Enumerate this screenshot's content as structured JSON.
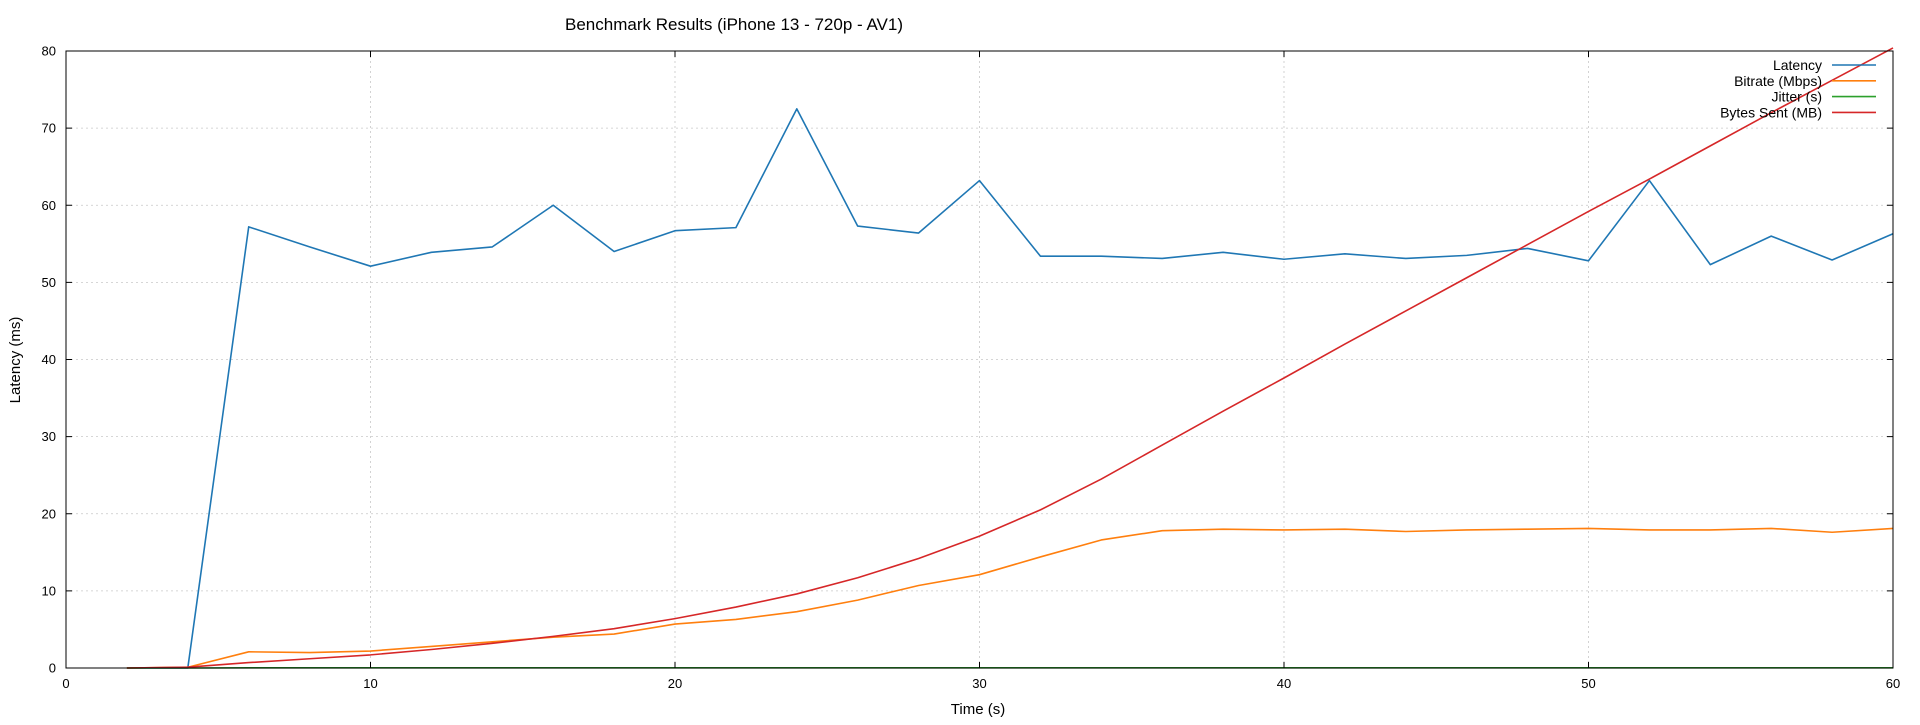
{
  "chart_data": {
    "type": "line",
    "title": "Benchmark Results (iPhone 13 - 720p - AV1)",
    "xlabel": "Time (s)",
    "ylabel": "Latency (ms)",
    "xlim": [
      0,
      60
    ],
    "ylim": [
      0,
      80
    ],
    "xticks": [
      0,
      10,
      20,
      30,
      40,
      50,
      60
    ],
    "yticks": [
      0,
      10,
      20,
      30,
      40,
      50,
      60,
      70,
      80
    ],
    "grid": true,
    "legend_position": "top-right",
    "series": [
      {
        "name": "Latency",
        "color": "#1f77b4",
        "x": [
          2,
          4,
          6,
          8,
          10,
          12,
          14,
          16,
          18,
          20,
          22,
          24,
          26,
          28,
          30,
          32,
          34,
          36,
          38,
          40,
          42,
          44,
          46,
          48,
          50,
          52,
          54,
          56,
          58,
          60
        ],
        "y": [
          0,
          0,
          57.2,
          54.6,
          52.1,
          53.9,
          54.6,
          60.0,
          54.0,
          56.7,
          57.1,
          72.5,
          57.3,
          56.4,
          63.2,
          53.4,
          53.4,
          53.1,
          53.9,
          53.0,
          53.7,
          53.1,
          53.5,
          54.4,
          52.8,
          63.2,
          52.3,
          56.0,
          52.9,
          56.3
        ]
      },
      {
        "name": "Bitrate (Mbps)",
        "color": "#ff7f0e",
        "x": [
          2,
          4,
          6,
          8,
          10,
          12,
          14,
          16,
          18,
          20,
          22,
          24,
          26,
          28,
          30,
          32,
          34,
          36,
          38,
          40,
          42,
          44,
          46,
          48,
          50,
          52,
          54,
          56,
          58,
          60
        ],
        "y": [
          0,
          0.1,
          2.1,
          2.0,
          2.2,
          2.8,
          3.4,
          4.0,
          4.4,
          5.7,
          6.3,
          7.3,
          8.8,
          10.7,
          12.1,
          14.4,
          16.6,
          17.8,
          18.0,
          17.9,
          18.0,
          17.7,
          17.9,
          18.0,
          18.1,
          17.9,
          17.9,
          18.1,
          17.6,
          18.1
        ]
      },
      {
        "name": "Jitter (s)",
        "color": "#2ca02c",
        "x": [
          2,
          4,
          6,
          8,
          10,
          12,
          14,
          16,
          18,
          20,
          22,
          24,
          26,
          28,
          30,
          32,
          34,
          36,
          38,
          40,
          42,
          44,
          46,
          48,
          50,
          52,
          54,
          56,
          58,
          60
        ],
        "y": [
          0,
          0,
          0.02,
          0.02,
          0.02,
          0.02,
          0.02,
          0.02,
          0.02,
          0.02,
          0.02,
          0.02,
          0.02,
          0.02,
          0.02,
          0.02,
          0.02,
          0.02,
          0.02,
          0.02,
          0.02,
          0.02,
          0.02,
          0.02,
          0.02,
          0.02,
          0.02,
          0.02,
          0.02,
          0.02
        ]
      },
      {
        "name": "Bytes Sent (MB)",
        "color": "#d62728",
        "x": [
          2,
          4,
          6,
          8,
          10,
          12,
          14,
          16,
          18,
          20,
          22,
          24,
          26,
          28,
          30,
          32,
          34,
          36,
          38,
          40,
          42,
          44,
          46,
          48,
          50,
          52,
          54,
          56,
          58,
          60
        ],
        "y": [
          0,
          0.1,
          0.7,
          1.2,
          1.7,
          2.4,
          3.2,
          4.1,
          5.1,
          6.4,
          7.9,
          9.6,
          11.7,
          14.2,
          17.1,
          20.5,
          24.5,
          28.9,
          33.3,
          37.6,
          42.0,
          46.3,
          50.6,
          54.9,
          59.2,
          63.4,
          67.7,
          72.0,
          76.2,
          80.4
        ]
      }
    ]
  }
}
